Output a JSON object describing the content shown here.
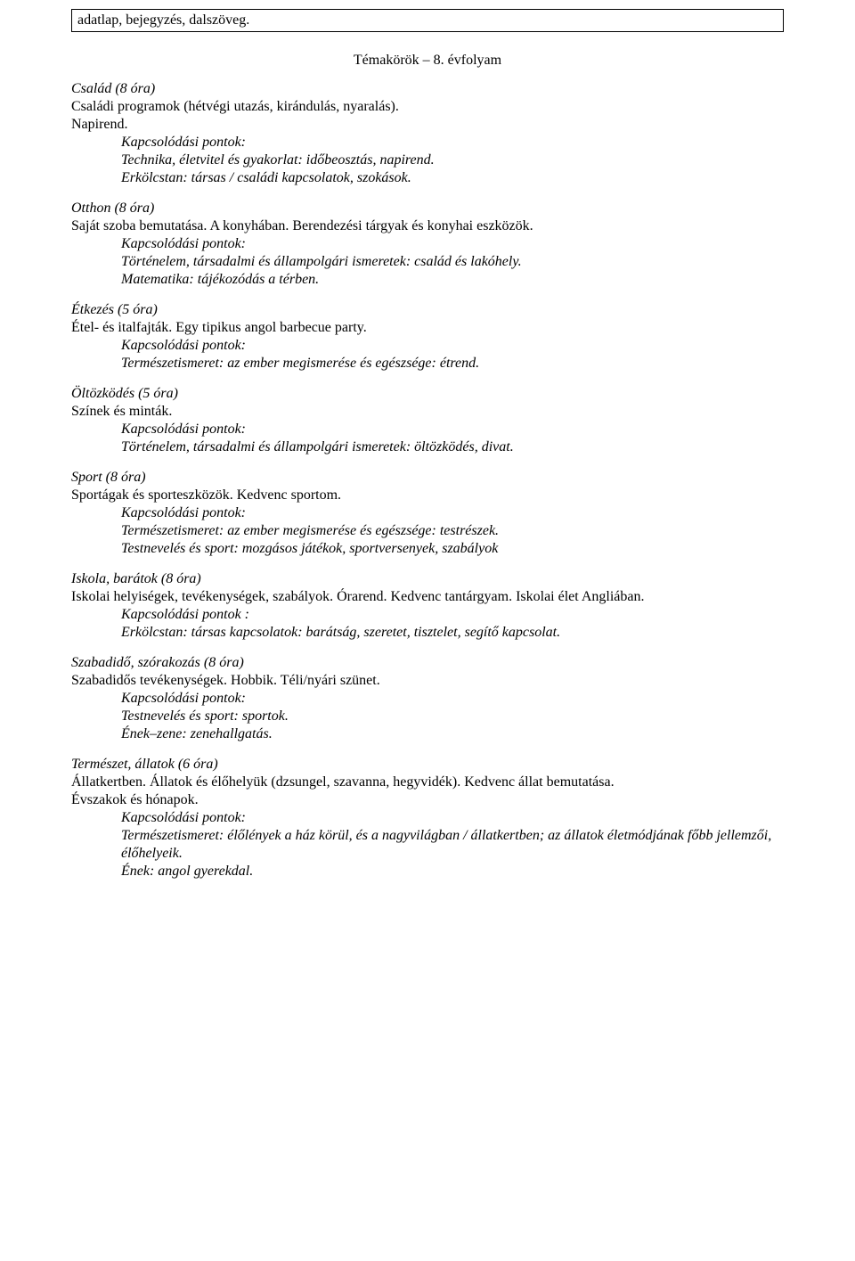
{
  "header_box": "adatlap, bejegyzés, dalszöveg.",
  "title": "Témakörök – 8. évfolyam",
  "sections": [
    {
      "heading": "Család (8 óra)",
      "body": [
        "Családi programok (hétvégi utazás, kirándulás, nyaralás).",
        "Napirend."
      ],
      "kp_label": "Kapcsolódási pontok:",
      "kp_lines": [
        "Technika, életvitel és gyakorlat: időbeosztás, napirend.",
        "Erkölcstan: társas / családi kapcsolatok, szokások."
      ]
    },
    {
      "heading": "Otthon (8 óra)",
      "body": [
        "Saját szoba bemutatása. A konyhában. Berendezési tárgyak és konyhai eszközök."
      ],
      "kp_label": "Kapcsolódási pontok:",
      "kp_lines": [
        "Történelem, társadalmi és állampolgári ismeretek: család és lakóhely.",
        "Matematika: tájékozódás a térben."
      ]
    },
    {
      "heading": "Étkezés (5 óra)",
      "body": [
        "Étel- és italfajták. Egy tipikus angol barbecue party."
      ],
      "kp_label": "Kapcsolódási pontok:",
      "kp_lines": [
        "Természetismeret: az ember megismerése és egészsége: étrend."
      ]
    },
    {
      "heading": "Öltözködés (5 óra)",
      "body": [
        "Színek és minták."
      ],
      "kp_label": "Kapcsolódási pontok:",
      "kp_lines": [
        "Történelem, társadalmi és állampolgári ismeretek: öltözködés, divat."
      ]
    },
    {
      "heading": "Sport (8 óra)",
      "body": [
        "Sportágak és sporteszközök. Kedvenc sportom."
      ],
      "kp_label": "Kapcsolódási pontok:",
      "kp_lines": [
        "Természetismeret: az ember megismerése és egészsége: testrészek.",
        "Testnevelés és sport: mozgásos játékok, sportversenyek, szabályok"
      ]
    },
    {
      "heading": "Iskola, barátok (8 óra)",
      "body": [
        "Iskolai helyiségek, tevékenységek, szabályok. Órarend. Kedvenc tantárgyam. Iskolai élet Angliában."
      ],
      "kp_label": "Kapcsolódási pontok :",
      "kp_lines": [
        "Erkölcstan: társas kapcsolatok: barátság, szeretet, tisztelet, segítő kapcsolat."
      ]
    },
    {
      "heading": "Szabadidő, szórakozás (8 óra)",
      "body": [
        "Szabadidős tevékenységek. Hobbik. Téli/nyári szünet."
      ],
      "kp_label": "Kapcsolódási pontok:",
      "kp_lines": [
        "Testnevelés és sport: sportok.",
        "Ének–zene: zenehallgatás."
      ]
    },
    {
      "heading": "Természet, állatok (6 óra)",
      "body": [
        "Állatkertben. Állatok és élőhelyük (dzsungel, szavanna, hegyvidék). Kedvenc állat bemutatása.",
        "Évszakok és hónapok."
      ],
      "kp_label": "Kapcsolódási pontok:",
      "kp_lines": [
        "Természetismeret: élőlények a ház körül, és a nagyvilágban / állatkertben; az állatok életmódjának főbb jellemzői, élőhelyeik.",
        "Ének: angol gyerekdal."
      ]
    }
  ]
}
